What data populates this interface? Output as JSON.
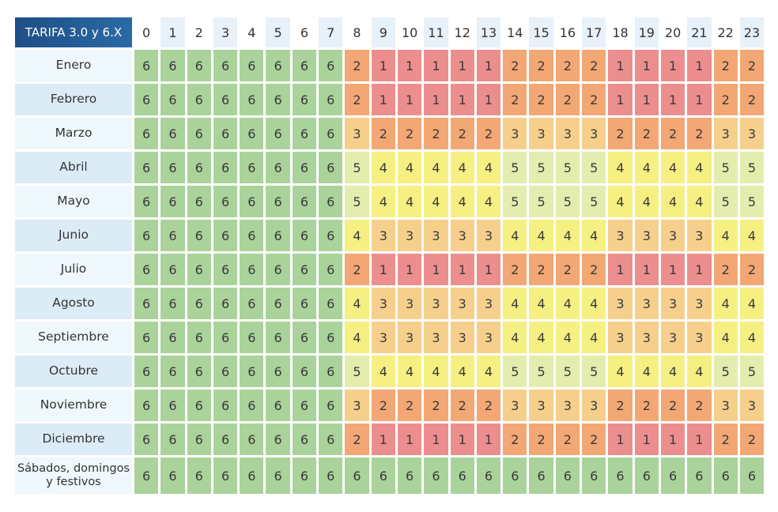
{
  "chart_data": {
    "type": "heatmap",
    "title": "TARIFA 3.0 y 6.X",
    "hours": [
      "0",
      "1",
      "2",
      "3",
      "4",
      "5",
      "6",
      "7",
      "8",
      "9",
      "10",
      "11",
      "12",
      "13",
      "14",
      "15",
      "16",
      "17",
      "18",
      "19",
      "20",
      "21",
      "22",
      "23"
    ],
    "rows": [
      {
        "label": "Enero",
        "values": [
          6,
          6,
          6,
          6,
          6,
          6,
          6,
          6,
          2,
          1,
          1,
          1,
          1,
          1,
          2,
          2,
          2,
          2,
          1,
          1,
          1,
          1,
          2,
          2
        ]
      },
      {
        "label": "Febrero",
        "values": [
          6,
          6,
          6,
          6,
          6,
          6,
          6,
          6,
          2,
          1,
          1,
          1,
          1,
          1,
          2,
          2,
          2,
          2,
          1,
          1,
          1,
          1,
          2,
          2
        ]
      },
      {
        "label": "Marzo",
        "values": [
          6,
          6,
          6,
          6,
          6,
          6,
          6,
          6,
          3,
          2,
          2,
          2,
          2,
          2,
          3,
          3,
          3,
          3,
          2,
          2,
          2,
          2,
          3,
          3
        ]
      },
      {
        "label": "Abril",
        "values": [
          6,
          6,
          6,
          6,
          6,
          6,
          6,
          6,
          5,
          4,
          4,
          4,
          4,
          4,
          5,
          5,
          5,
          5,
          4,
          4,
          4,
          4,
          5,
          5
        ]
      },
      {
        "label": "Mayo",
        "values": [
          6,
          6,
          6,
          6,
          6,
          6,
          6,
          6,
          5,
          4,
          4,
          4,
          4,
          4,
          5,
          5,
          5,
          5,
          4,
          4,
          4,
          4,
          5,
          5
        ]
      },
      {
        "label": "Junio",
        "values": [
          6,
          6,
          6,
          6,
          6,
          6,
          6,
          6,
          4,
          3,
          3,
          3,
          3,
          3,
          4,
          4,
          4,
          4,
          3,
          3,
          3,
          3,
          4,
          4
        ]
      },
      {
        "label": "Julio",
        "values": [
          6,
          6,
          6,
          6,
          6,
          6,
          6,
          6,
          2,
          1,
          1,
          1,
          1,
          1,
          2,
          2,
          2,
          2,
          1,
          1,
          1,
          1,
          2,
          2
        ]
      },
      {
        "label": "Agosto",
        "values": [
          6,
          6,
          6,
          6,
          6,
          6,
          6,
          6,
          4,
          3,
          3,
          3,
          3,
          3,
          4,
          4,
          4,
          4,
          3,
          3,
          3,
          3,
          4,
          4
        ]
      },
      {
        "label": "Septiembre",
        "values": [
          6,
          6,
          6,
          6,
          6,
          6,
          6,
          6,
          4,
          3,
          3,
          3,
          3,
          3,
          4,
          4,
          4,
          4,
          3,
          3,
          3,
          3,
          4,
          4
        ]
      },
      {
        "label": "Octubre",
        "values": [
          6,
          6,
          6,
          6,
          6,
          6,
          6,
          6,
          5,
          4,
          4,
          4,
          4,
          4,
          5,
          5,
          5,
          5,
          4,
          4,
          4,
          4,
          5,
          5
        ]
      },
      {
        "label": "Noviembre",
        "values": [
          6,
          6,
          6,
          6,
          6,
          6,
          6,
          6,
          3,
          2,
          2,
          2,
          2,
          2,
          3,
          3,
          3,
          3,
          2,
          2,
          2,
          2,
          3,
          3
        ]
      },
      {
        "label": "Diciembre",
        "values": [
          6,
          6,
          6,
          6,
          6,
          6,
          6,
          6,
          2,
          1,
          1,
          1,
          1,
          1,
          2,
          2,
          2,
          2,
          1,
          1,
          1,
          1,
          2,
          2
        ]
      },
      {
        "label": "Sábados, domingos y festivos",
        "values": [
          6,
          6,
          6,
          6,
          6,
          6,
          6,
          6,
          6,
          6,
          6,
          6,
          6,
          6,
          6,
          6,
          6,
          6,
          6,
          6,
          6,
          6,
          6,
          6
        ]
      }
    ],
    "colors": {
      "1": "#ec8e8e",
      "2": "#f2a774",
      "3": "#f7cf8c",
      "4": "#f6ef82",
      "5": "#e4ecae",
      "6": "#a9d39a"
    }
  }
}
